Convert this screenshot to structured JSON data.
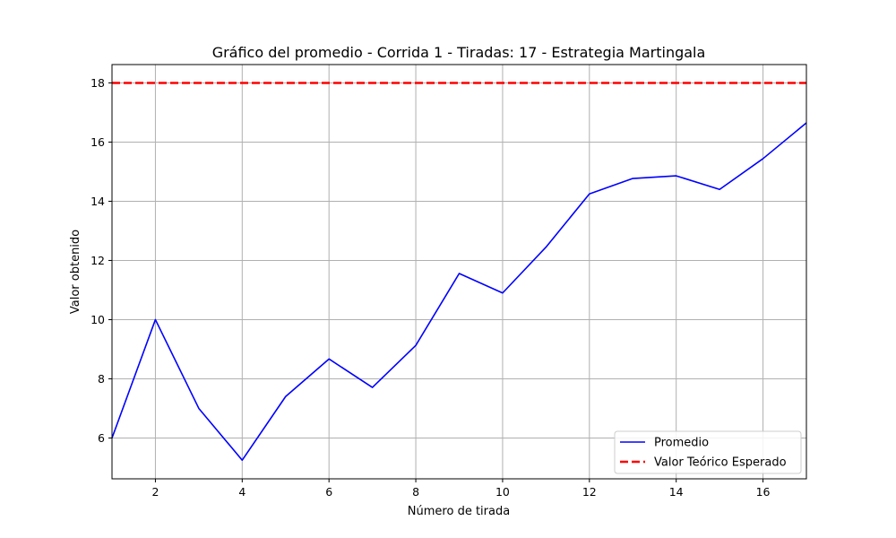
{
  "chart_data": {
    "type": "line",
    "title": "Gráfico del promedio - Corrida 1 - Tiradas: 17 - Estrategia Martingala",
    "xlabel": "Número de tirada",
    "ylabel": "Valor obtenido",
    "xlim": [
      1,
      17
    ],
    "ylim": [
      4.62,
      18.62
    ],
    "xticks": [
      2,
      4,
      6,
      8,
      10,
      12,
      14,
      16
    ],
    "xtick_labels": [
      "2",
      "4",
      "6",
      "8",
      "10",
      "12",
      "14",
      "16"
    ],
    "yticks": [
      6,
      8,
      10,
      12,
      14,
      16,
      18
    ],
    "ytick_labels": [
      "6",
      "8",
      "10",
      "12",
      "14",
      "16",
      "18"
    ],
    "grid": true,
    "legend_position": "bottom-right",
    "series": [
      {
        "name": "Promedio",
        "color": "#0000ff",
        "style": "solid",
        "x": [
          1,
          2,
          3,
          4,
          5,
          6,
          7,
          8,
          9,
          10,
          11,
          12,
          13,
          14,
          15,
          16,
          17
        ],
        "values": [
          6.0,
          10.0,
          7.0,
          5.25,
          7.4,
          8.67,
          7.71,
          9.13,
          11.56,
          10.9,
          12.45,
          14.25,
          14.77,
          14.86,
          14.4,
          15.44,
          16.65
        ]
      },
      {
        "name": "Valor Teórico Esperado",
        "color": "#ff0000",
        "style": "dashed",
        "x": [
          1,
          17
        ],
        "values": [
          18,
          18
        ]
      }
    ]
  }
}
